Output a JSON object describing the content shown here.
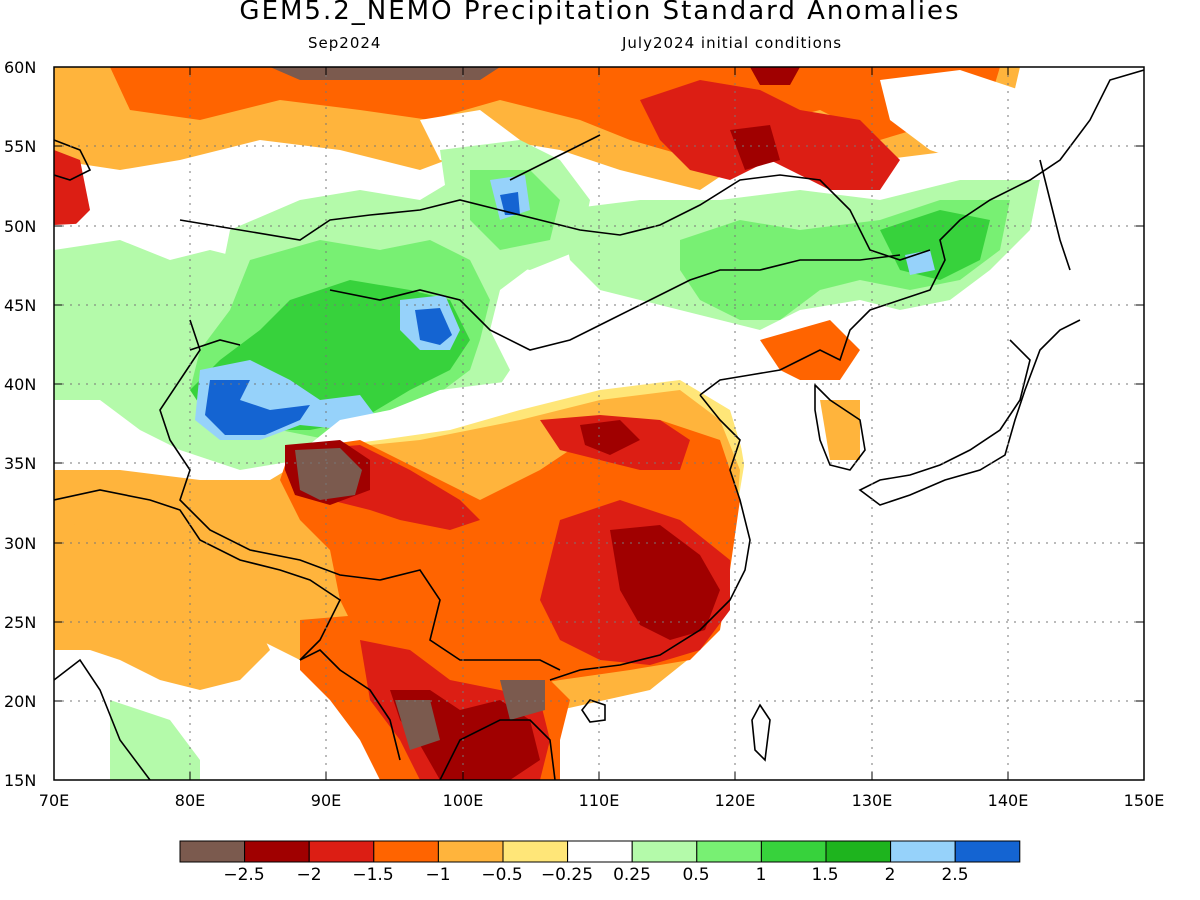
{
  "title": "GEM5.2_NEMO Precipitation Standard Anomalies",
  "subtitle_left": "Sep2024",
  "subtitle_right": "July2024 initial conditions",
  "map": {
    "lon_range": [
      70,
      150
    ],
    "lat_range": [
      15,
      60
    ],
    "lon_ticks": [
      "70E",
      "80E",
      "90E",
      "100E",
      "110E",
      "120E",
      "130E",
      "140E",
      "150E"
    ],
    "lat_ticks": [
      "60N",
      "55N",
      "50N",
      "45N",
      "40N",
      "35N",
      "30N",
      "25N",
      "20N",
      "15N"
    ],
    "grid": "dotted"
  },
  "colorbar": {
    "colors": [
      "#7b5a4e",
      "#a00000",
      "#dc1e14",
      "#ff6400",
      "#ffb43c",
      "#ffe678",
      "#ffffff",
      "#b4faaa",
      "#78f073",
      "#37d23c",
      "#1eb41e",
      "#96d2fa",
      "#1464d2"
    ],
    "labels": [
      "−2.5",
      "−2",
      "−1.5",
      "−1",
      "−0.5",
      "−0.25",
      "0.25",
      "0.5",
      "1",
      "1.5",
      "2",
      "2.5"
    ]
  },
  "anomaly_regions": [
    {
      "name": "northern-belt",
      "color": "#ffb43c"
    },
    {
      "name": "tibet-dry-core",
      "color": "#7b5a4e"
    },
    {
      "name": "south-china-dry",
      "color": "#a00000"
    },
    {
      "name": "tarim-wet",
      "color": "#1464d2"
    },
    {
      "name": "mongolia-wet",
      "color": "#37d23c"
    },
    {
      "name": "northeast-wet",
      "color": "#37d23c"
    }
  ]
}
